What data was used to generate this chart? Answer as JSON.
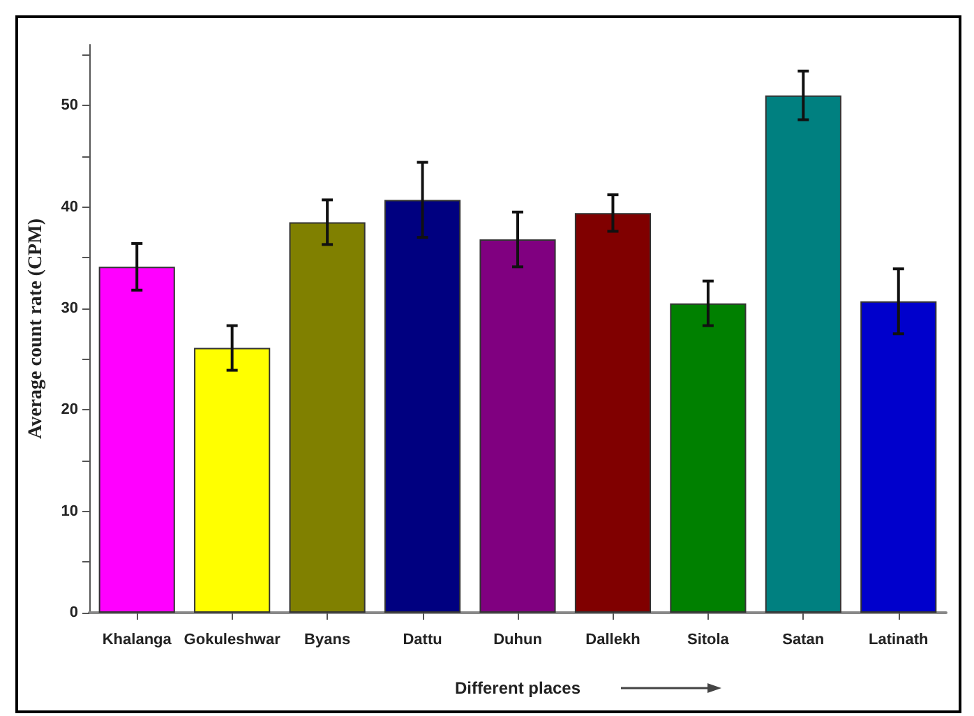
{
  "chart_data": {
    "type": "bar",
    "xlabel": "Different places",
    "ylabel": "Average count rate (CPM)",
    "categories": [
      "Khalanga",
      "Gokuleshwar",
      "Byans",
      "Dattu",
      "Duhun",
      "Dallekh",
      "Sitola",
      "Satan",
      "Latinath"
    ],
    "values": [
      34.1,
      26.1,
      38.5,
      40.7,
      36.8,
      39.4,
      30.5,
      51.0,
      30.7
    ],
    "errors": [
      2.3,
      2.2,
      2.2,
      3.7,
      2.7,
      1.8,
      2.2,
      2.4,
      3.2
    ],
    "colors": [
      "#ff00ff",
      "#ffff00",
      "#808000",
      "#000080",
      "#800080",
      "#800000",
      "#008000",
      "#008080",
      "#0000cc"
    ],
    "ylim": [
      0,
      56
    ],
    "yticks": [
      0,
      {
        "value": 5,
        "label": null
      },
      10,
      {
        "value": 15,
        "label": null
      },
      20,
      {
        "value": 25,
        "label": null
      },
      30,
      {
        "value": 35,
        "label": null
      },
      40,
      {
        "value": 45,
        "label": null
      },
      50,
      {
        "value": 55,
        "label": null
      }
    ],
    "grid": false
  }
}
